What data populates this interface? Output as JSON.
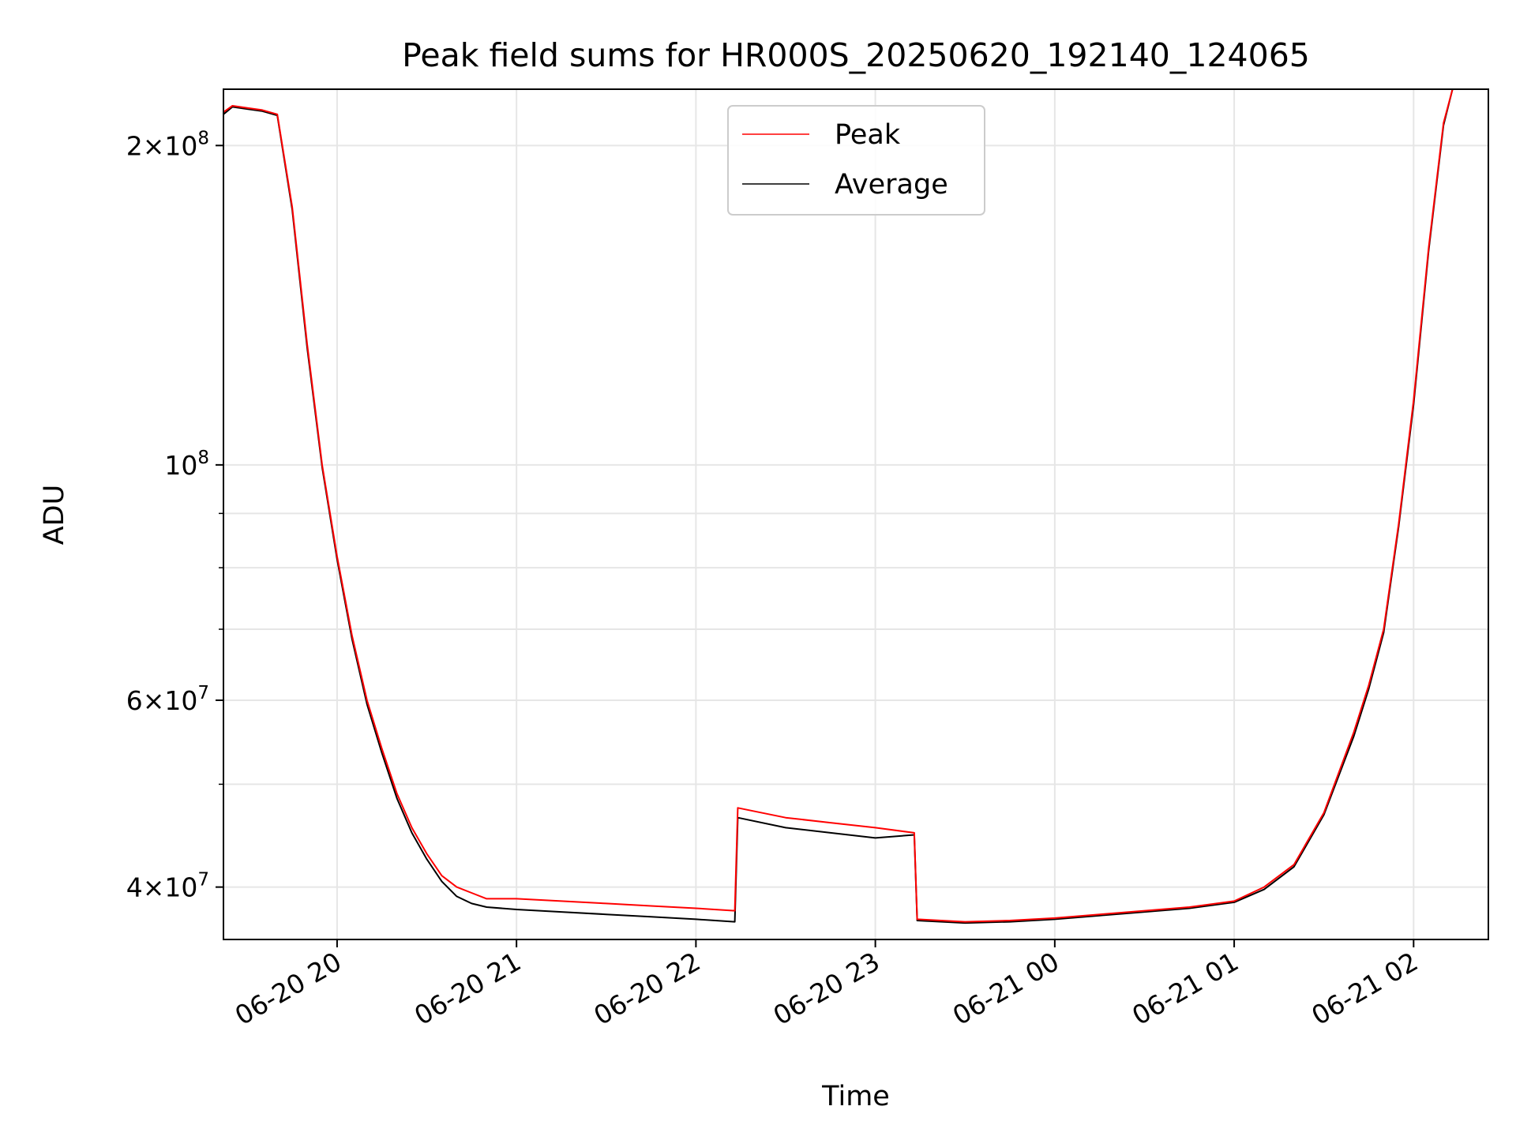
{
  "chart_data": {
    "type": "line",
    "title": "Peak field sums for HR000S_20250620_192140_124065",
    "xlabel": "Time",
    "ylabel": "ADU",
    "y_scale": "log",
    "ylim": [
      35700000,
      226000000
    ],
    "xlim": [
      "2025-06-20 19:22",
      "2025-06-21 02:25"
    ],
    "grid": true,
    "legend_position": "upper center",
    "x_tick_labels": [
      "06-20 20",
      "06-20 21",
      "06-20 22",
      "06-20 23",
      "06-21 00",
      "06-21 01",
      "06-21 02"
    ],
    "x_ticks": [
      "2025-06-20 20:00",
      "2025-06-20 21:00",
      "2025-06-20 22:00",
      "2025-06-20 23:00",
      "2025-06-21 00:00",
      "2025-06-21 01:00",
      "2025-06-21 02:00"
    ],
    "y_major_ticks": [
      {
        "value": 40000000,
        "mantissa": "4",
        "exponent": "7"
      },
      {
        "value": 60000000,
        "mantissa": "6",
        "exponent": "7"
      },
      {
        "value": 100000000,
        "mantissa": "",
        "exponent": "8"
      },
      {
        "value": 200000000,
        "mantissa": "2",
        "exponent": "8"
      }
    ],
    "y_minor_ticks": [
      50000000,
      70000000,
      80000000,
      90000000
    ],
    "colors": {
      "peak": "#ff0000",
      "average": "#000000"
    },
    "series": [
      {
        "name": "Peak",
        "color": "#ff0000",
        "x": [
          "2025-06-20 19:22",
          "2025-06-20 19:25",
          "2025-06-20 19:30",
          "2025-06-20 19:35",
          "2025-06-20 19:40",
          "2025-06-20 19:45",
          "2025-06-20 19:50",
          "2025-06-20 19:55",
          "2025-06-20 20:00",
          "2025-06-20 20:05",
          "2025-06-20 20:10",
          "2025-06-20 20:15",
          "2025-06-20 20:20",
          "2025-06-20 20:25",
          "2025-06-20 20:30",
          "2025-06-20 20:35",
          "2025-06-20 20:40",
          "2025-06-20 20:45",
          "2025-06-20 20:50",
          "2025-06-20 21:00",
          "2025-06-20 21:15",
          "2025-06-20 21:30",
          "2025-06-20 21:45",
          "2025-06-20 22:00",
          "2025-06-20 22:13",
          "2025-06-20 22:14",
          "2025-06-20 22:30",
          "2025-06-20 22:45",
          "2025-06-20 23:00",
          "2025-06-20 23:13",
          "2025-06-20 23:14",
          "2025-06-20 23:30",
          "2025-06-20 23:45",
          "2025-06-21 00:00",
          "2025-06-21 00:15",
          "2025-06-21 00:30",
          "2025-06-21 00:45",
          "2025-06-21 01:00",
          "2025-06-21 01:10",
          "2025-06-21 01:20",
          "2025-06-21 01:30",
          "2025-06-21 01:40",
          "2025-06-21 01:45",
          "2025-06-21 01:50",
          "2025-06-21 01:55",
          "2025-06-21 02:00",
          "2025-06-21 02:05",
          "2025-06-21 02:10",
          "2025-06-21 02:13"
        ],
        "y": [
          215000000,
          218000000,
          217000000,
          216000000,
          214000000,
          175000000,
          130000000,
          100000000,
          82000000,
          69000000,
          60000000,
          54000000,
          49000000,
          45500000,
          43000000,
          41000000,
          40000000,
          39500000,
          39000000,
          39000000,
          38800000,
          38600000,
          38400000,
          38200000,
          38000000,
          47500000,
          46500000,
          46000000,
          45500000,
          45000000,
          37300000,
          37100000,
          37200000,
          37400000,
          37700000,
          38000000,
          38300000,
          38800000,
          40000000,
          42000000,
          47000000,
          56000000,
          62000000,
          70000000,
          88000000,
          115000000,
          160000000,
          210000000,
          226000000
        ]
      },
      {
        "name": "Average",
        "color": "#000000",
        "x": [
          "2025-06-20 19:22",
          "2025-06-20 19:25",
          "2025-06-20 19:30",
          "2025-06-20 19:35",
          "2025-06-20 19:40",
          "2025-06-20 19:45",
          "2025-06-20 19:50",
          "2025-06-20 19:55",
          "2025-06-20 20:00",
          "2025-06-20 20:05",
          "2025-06-20 20:10",
          "2025-06-20 20:15",
          "2025-06-20 20:20",
          "2025-06-20 20:25",
          "2025-06-20 20:30",
          "2025-06-20 20:35",
          "2025-06-20 20:40",
          "2025-06-20 20:45",
          "2025-06-20 20:50",
          "2025-06-20 21:00",
          "2025-06-20 21:15",
          "2025-06-20 21:30",
          "2025-06-20 21:45",
          "2025-06-20 22:00",
          "2025-06-20 22:13",
          "2025-06-20 22:14",
          "2025-06-20 22:30",
          "2025-06-20 22:45",
          "2025-06-20 23:00",
          "2025-06-20 23:13",
          "2025-06-20 23:14",
          "2025-06-20 23:30",
          "2025-06-20 23:45",
          "2025-06-21 00:00",
          "2025-06-21 00:15",
          "2025-06-21 00:30",
          "2025-06-21 00:45",
          "2025-06-21 01:00",
          "2025-06-21 01:10",
          "2025-06-21 01:20",
          "2025-06-21 01:30",
          "2025-06-21 01:40",
          "2025-06-21 01:45",
          "2025-06-21 01:50",
          "2025-06-21 01:55",
          "2025-06-21 02:00",
          "2025-06-21 02:05",
          "2025-06-21 02:10",
          "2025-06-21 02:13"
        ],
        "y": [
          214000000,
          217500000,
          216500000,
          215500000,
          213500000,
          174000000,
          129000000,
          99500000,
          81500000,
          68500000,
          59500000,
          53500000,
          48500000,
          45000000,
          42500000,
          40500000,
          39200000,
          38600000,
          38300000,
          38100000,
          37900000,
          37700000,
          37500000,
          37300000,
          37100000,
          46500000,
          45500000,
          45000000,
          44500000,
          44800000,
          37200000,
          37000000,
          37100000,
          37300000,
          37600000,
          37900000,
          38200000,
          38700000,
          39800000,
          41800000,
          46800000,
          55500000,
          61500000,
          69500000,
          87500000,
          114000000,
          159000000,
          209000000,
          226000000
        ]
      }
    ]
  }
}
